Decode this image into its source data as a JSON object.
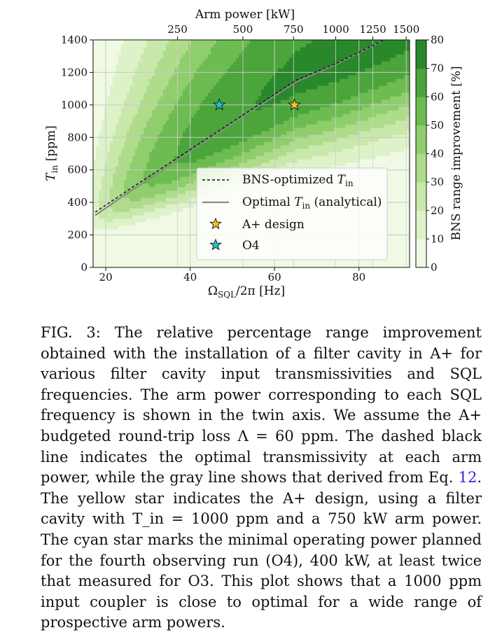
{
  "chart_data": {
    "type": "heatmap",
    "title": "",
    "xlabel": "Ω_SQL/2π [Hz]",
    "ylabel": "T_in [ppm]",
    "top_xlabel": "Arm power [kW]",
    "colorbar_label": "BNS range improvement [%]",
    "xlim": [
      17,
      92
    ],
    "ylim": [
      0,
      1400
    ],
    "x_ticks": [
      20,
      40,
      60,
      80
    ],
    "y_ticks": [
      0,
      200,
      400,
      600,
      800,
      1000,
      1200,
      1400
    ],
    "top_ticks": [
      {
        "label": "250",
        "x_hz": 37.0
      },
      {
        "label": "500",
        "x_hz": 52.5
      },
      {
        "label": "750",
        "x_hz": 64.5
      },
      {
        "label": "1000",
        "x_hz": 74.5
      },
      {
        "label": "1250",
        "x_hz": 83.3
      },
      {
        "label": "1500",
        "x_hz": 91.2
      }
    ],
    "colorbar_ticks": [
      0,
      10,
      20,
      30,
      40,
      50,
      60,
      70,
      80
    ],
    "colorbar_range": [
      0,
      80
    ],
    "contour_peak_percent": 73,
    "grid": true,
    "legend_position": "lower-right",
    "series": [
      {
        "name": "BNS-optimized T_in",
        "style": "black-dashed",
        "x": [
          17.5,
          25,
          35,
          45,
          55,
          65,
          75,
          86
        ],
        "y": [
          340,
          470,
          640,
          810,
          980,
          1150,
          1260,
          1400
        ]
      },
      {
        "name": "Optimal T_in (analytical)",
        "style": "gray-solid",
        "x": [
          17.5,
          25,
          35,
          45,
          55,
          65,
          75,
          86
        ],
        "y": [
          320,
          455,
          625,
          800,
          970,
          1140,
          1255,
          1400
        ]
      }
    ],
    "points": [
      {
        "name": "A+ design",
        "x": 64.7,
        "y": 1000,
        "color": "#f5c518",
        "marker": "star"
      },
      {
        "name": "O4",
        "x": 46.9,
        "y": 1000,
        "color": "#1cc8c8",
        "marker": "star"
      }
    ]
  },
  "caption": {
    "prefix": "FIG. 3: The relative percentage range improvement obtained with the installation of a filter cavity in A+ for various filter cavity input transmissivities and SQL frequencies. The arm power corresponding to each SQL frequency is shown in the twin axis. We assume the A+ budgeted round-trip loss Λ = 60 ppm. The dashed black line indicates the optimal transmissivity at each arm power, while the gray line shows that derived from Eq. ",
    "ref": "12",
    "suffix": ". The yellow star indicates the A+ design, using a filter cavity with T_in = 1000 ppm and a 750 kW arm power. The cyan star marks the minimal operating power planned for the fourth observing run (O4), 400 kW, at least twice that measured for O3. This plot shows that a 1000 ppm input coupler is close to optimal for a wide range of prospective arm powers."
  }
}
